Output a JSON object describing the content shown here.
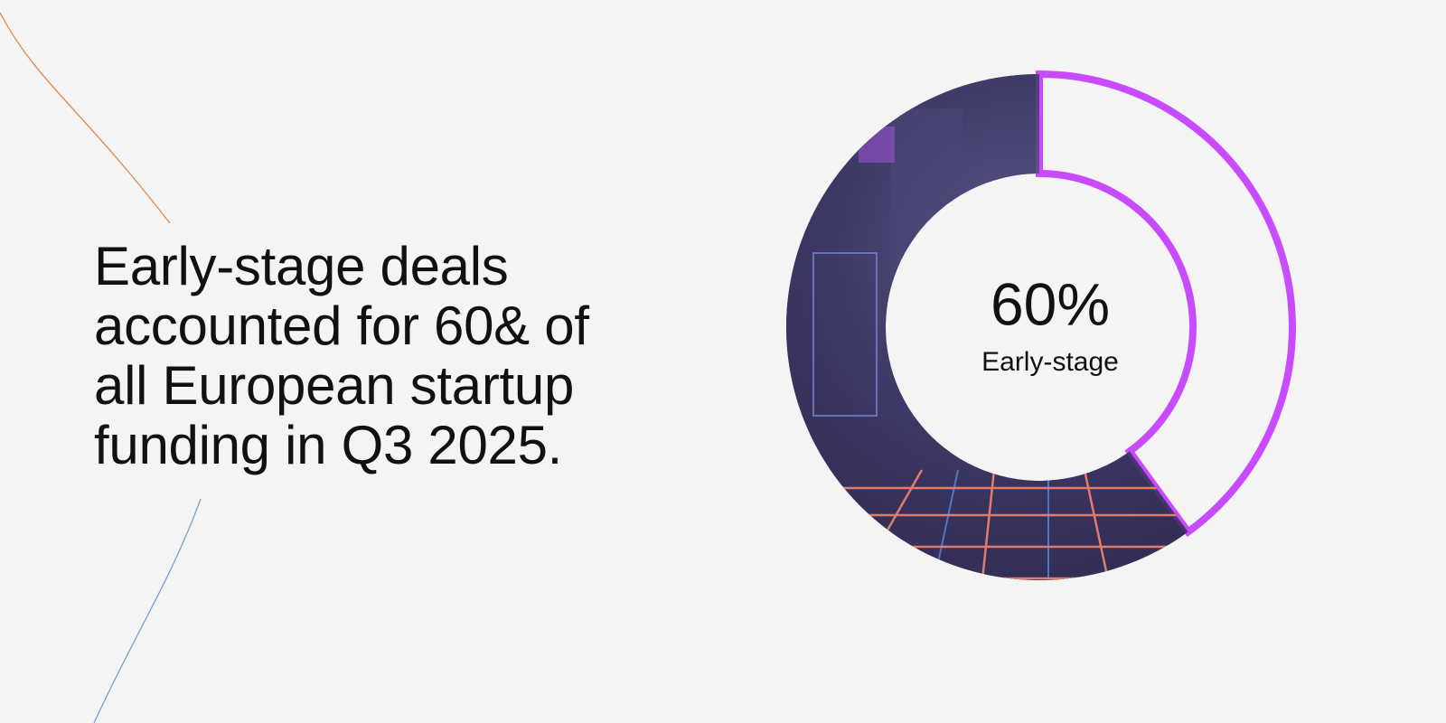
{
  "chart_data": {
    "type": "donut",
    "title": "Early-stage deals accounted for 60& of all European startup funding in Q3 2025.",
    "categories": [
      "Early-stage",
      null
    ],
    "values": [
      60,
      40
    ],
    "value_labels": [
      "60%",
      null
    ],
    "colors": [
      "#3b3766",
      "#c84bff"
    ]
  }
}
